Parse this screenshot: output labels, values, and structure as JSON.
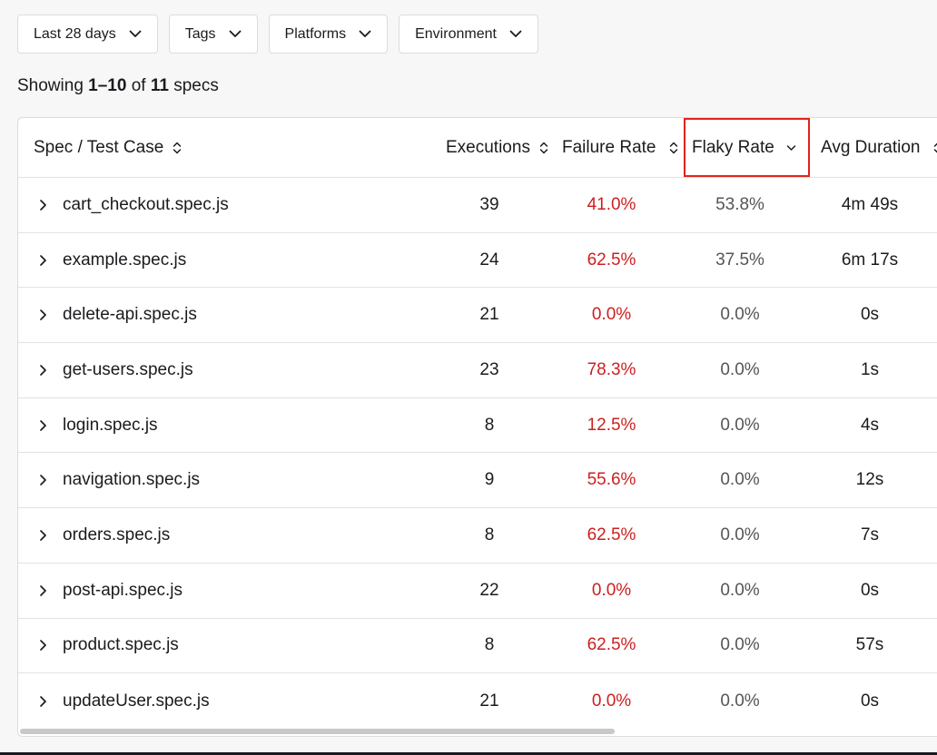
{
  "filters": [
    {
      "label": "Last 28 days"
    },
    {
      "label": "Tags"
    },
    {
      "label": "Platforms"
    },
    {
      "label": "Environment"
    }
  ],
  "summary": {
    "prefix": "Showing ",
    "range": "1–10",
    "middle": " of ",
    "total": "11",
    "suffix": " specs"
  },
  "table": {
    "headers": {
      "spec": "Spec / Test Case",
      "executions": "Executions",
      "failure": "Failure Rate",
      "flaky": "Flaky Rate",
      "duration": "Avg Duration"
    },
    "rows": [
      {
        "name": "cart_checkout.spec.js",
        "executions": "39",
        "failure": "41.0%",
        "flaky": "53.8%",
        "duration": "4m 49s"
      },
      {
        "name": "example.spec.js",
        "executions": "24",
        "failure": "62.5%",
        "flaky": "37.5%",
        "duration": "6m 17s"
      },
      {
        "name": "delete-api.spec.js",
        "executions": "21",
        "failure": "0.0%",
        "flaky": "0.0%",
        "duration": "0s"
      },
      {
        "name": "get-users.spec.js",
        "executions": "23",
        "failure": "78.3%",
        "flaky": "0.0%",
        "duration": "1s"
      },
      {
        "name": "login.spec.js",
        "executions": "8",
        "failure": "12.5%",
        "flaky": "0.0%",
        "duration": "4s"
      },
      {
        "name": "navigation.spec.js",
        "executions": "9",
        "failure": "55.6%",
        "flaky": "0.0%",
        "duration": "12s"
      },
      {
        "name": "orders.spec.js",
        "executions": "8",
        "failure": "62.5%",
        "flaky": "0.0%",
        "duration": "7s"
      },
      {
        "name": "post-api.spec.js",
        "executions": "22",
        "failure": "0.0%",
        "flaky": "0.0%",
        "duration": "0s"
      },
      {
        "name": "product.spec.js",
        "executions": "8",
        "failure": "62.5%",
        "flaky": "0.0%",
        "duration": "57s"
      },
      {
        "name": "updateUser.spec.js",
        "executions": "21",
        "failure": "0.0%",
        "flaky": "0.0%",
        "duration": "0s"
      }
    ]
  },
  "colors": {
    "failure": "#cc1f1f",
    "highlight": "#e3221b"
  },
  "icons": {
    "filter": "chevron-down-icon",
    "sort": "sort-icon",
    "sorted": "chevron-down-icon",
    "row": "chevron-right-icon"
  }
}
